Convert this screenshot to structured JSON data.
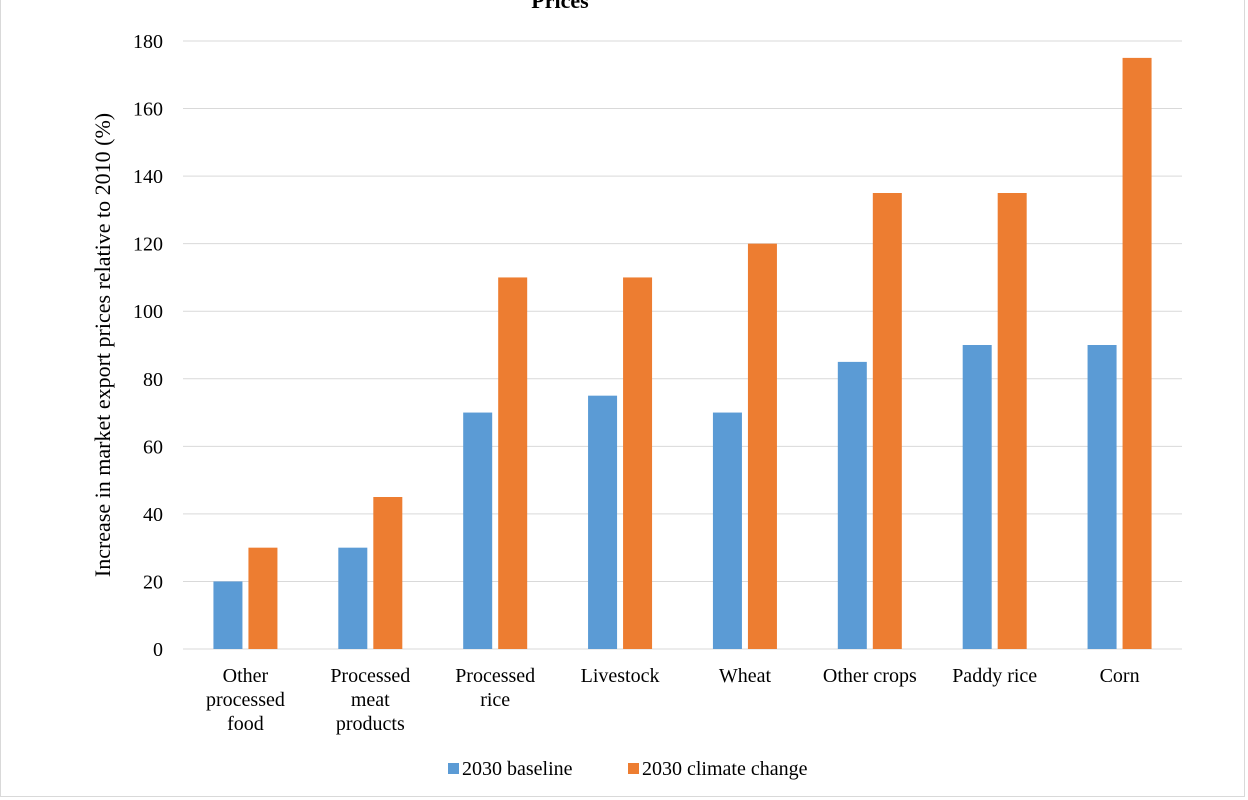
{
  "chart_data": {
    "type": "bar",
    "title": "Prices",
    "xlabel": "",
    "ylabel": "Increase in market export prices relative to 2010 (%)",
    "ylim": [
      0,
      180
    ],
    "yticks": [
      0,
      20,
      40,
      60,
      80,
      100,
      120,
      140,
      160,
      180
    ],
    "grid": true,
    "legend_position": "bottom",
    "categories": [
      [
        "Other",
        "processed",
        "food"
      ],
      [
        "Processed",
        "meat",
        "products"
      ],
      [
        "Processed",
        "rice"
      ],
      [
        "Livestock"
      ],
      [
        "Wheat"
      ],
      [
        "Other crops"
      ],
      [
        "Paddy rice"
      ],
      [
        "Corn"
      ]
    ],
    "series": [
      {
        "name": "2030 baseline",
        "color": "#5b9bd5",
        "values": [
          20,
          30,
          70,
          75,
          70,
          85,
          90,
          90
        ]
      },
      {
        "name": "2030 climate change",
        "color": "#ed7d31",
        "values": [
          30,
          45,
          110,
          110,
          120,
          135,
          135,
          175
        ]
      }
    ]
  }
}
